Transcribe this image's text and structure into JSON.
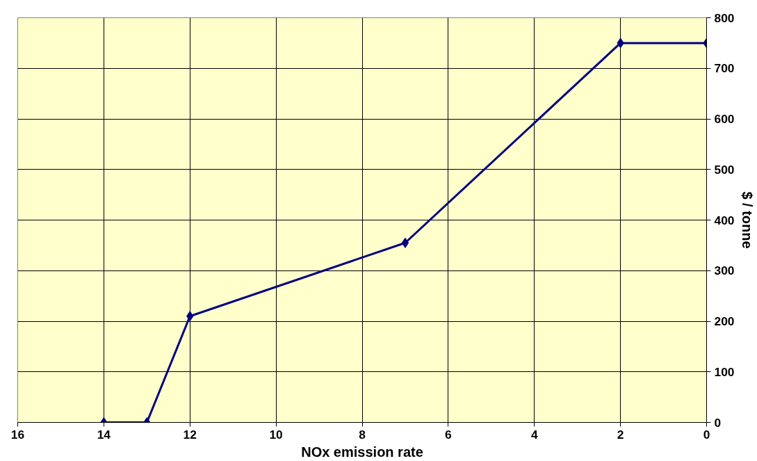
{
  "chart_data": {
    "type": "line",
    "xlabel": "NOx emission rate",
    "ylabel": "$ / tonne",
    "x": [
      14,
      13,
      12,
      7,
      2,
      0
    ],
    "series": [
      {
        "color": "#000080",
        "values": [
          0,
          0,
          210,
          355,
          750,
          750
        ]
      }
    ],
    "xlim": [
      16,
      0
    ],
    "xticks": [
      16,
      14,
      12,
      10,
      8,
      6,
      4,
      2,
      0
    ],
    "ylim": [
      0,
      800
    ],
    "yticks": [
      0,
      100,
      200,
      300,
      400,
      500,
      600,
      700,
      800
    ],
    "grid": true,
    "marker": "diamond",
    "line_style": "solid"
  }
}
